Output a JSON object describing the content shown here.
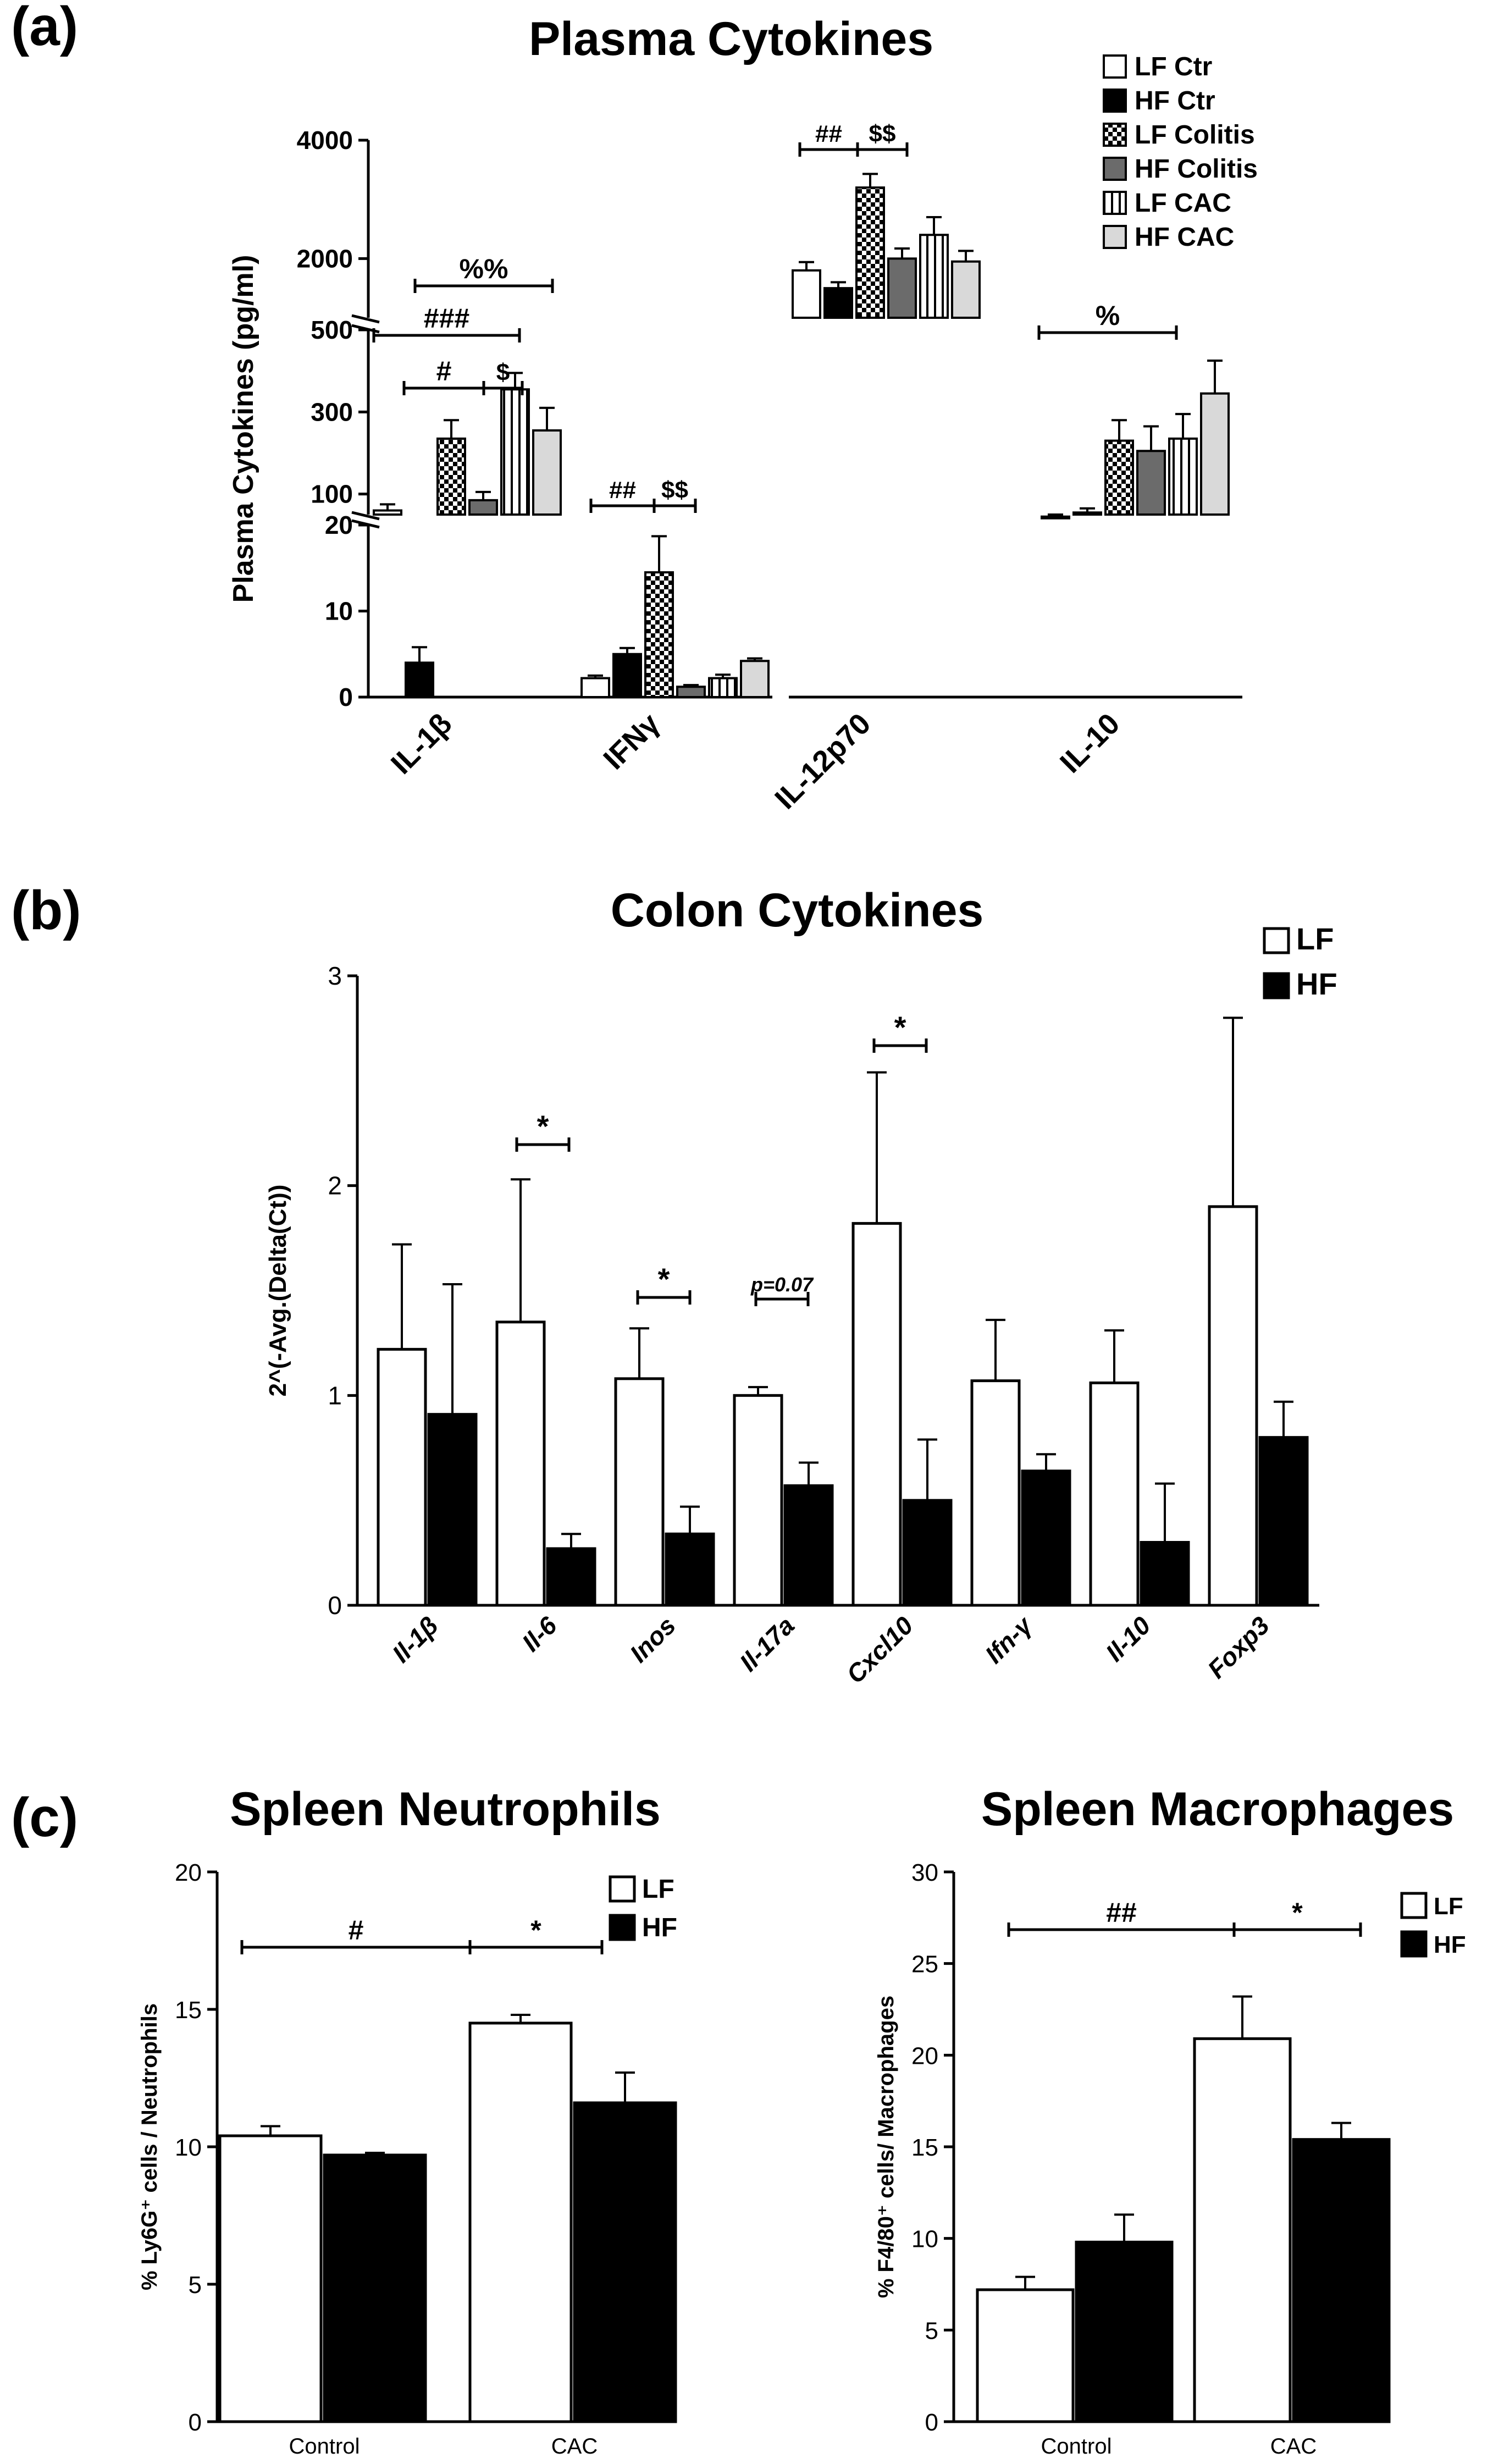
{
  "panels": {
    "a": {
      "tag": "(a)",
      "title": "Plasma Cytokines"
    },
    "b": {
      "tag": "(b)",
      "title": "Colon Cytokines"
    },
    "c": {
      "tag": "(c)",
      "title_left": "Spleen Neutrophils",
      "title_right": "Spleen Macrophages"
    }
  },
  "colors": {
    "LF": "#ffffff",
    "HF": "#000000",
    "HF Colitis": "#6b6b6b",
    "HF CAC": "#d9d9d9",
    "axis": "#000000"
  },
  "chart_data": [
    {
      "id": "a",
      "type": "bar",
      "title": "Plasma Cytokines",
      "ylabel": "Plasma Cytokines (pg/ml)",
      "yaxis_segments": [
        {
          "range": [
            0,
            20
          ],
          "ticks": [
            "0",
            "10",
            "20"
          ]
        },
        {
          "range": [
            50,
            500
          ],
          "ticks": [
            "100",
            "300",
            "500"
          ]
        },
        {
          "range": [
            1000,
            4000
          ],
          "ticks": [
            "2000",
            "4000"
          ]
        }
      ],
      "categories": [
        "IL-1β",
        "IFNγ",
        "IL-12p70",
        "IL-10"
      ],
      "series": [
        {
          "name": "LF Ctr",
          "pattern": "white",
          "values": [
            60,
            2.2,
            1800,
            45
          ],
          "errors": [
            15,
            0.3,
            140,
            5
          ]
        },
        {
          "name": "HF Ctr",
          "pattern": "black",
          "values": [
            4,
            5,
            1500,
            55
          ],
          "errors": [
            1.8,
            0.7,
            100,
            10
          ]
        },
        {
          "name": "LF Colitis",
          "pattern": "checker",
          "values": [
            235,
            14.5,
            3200,
            230
          ],
          "errors": [
            45,
            4.2,
            230,
            50
          ]
        },
        {
          "name": "HF Colitis",
          "pattern": "darkgray",
          "values": [
            85,
            1.2,
            2000,
            205
          ],
          "errors": [
            20,
            0.2,
            170,
            60
          ]
        },
        {
          "name": "LF CAC",
          "pattern": "vstripe",
          "values": [
            355,
            2.2,
            2400,
            235
          ],
          "errors": [
            40,
            0.4,
            300,
            60
          ]
        },
        {
          "name": "HF CAC",
          "pattern": "lightgray",
          "values": [
            255,
            4.2,
            1950,
            345
          ],
          "errors": [
            55,
            0.3,
            180,
            80
          ]
        }
      ],
      "annotations": [
        "%%",
        "###",
        "#",
        "$",
        "##",
        "$$",
        "##",
        "$$",
        "%"
      ]
    },
    {
      "id": "b",
      "type": "bar",
      "title": "Colon Cytokines",
      "ylabel": "2^(-Avg.(Delta(Ct))",
      "ylim": [
        0,
        3
      ],
      "yticks": [
        "0",
        "1",
        "2",
        "3"
      ],
      "categories": [
        "Il-1β",
        "Il-6",
        "Inos",
        "Il-17a",
        "Cxcl10",
        "Ifn-γ",
        "Il-10",
        "Foxp3"
      ],
      "series": [
        {
          "name": "LF",
          "values": [
            1.22,
            1.35,
            1.08,
            1.0,
            1.82,
            1.07,
            1.06,
            1.9
          ],
          "errors": [
            0.5,
            0.68,
            0.24,
            0.04,
            0.72,
            0.29,
            0.25,
            0.9
          ]
        },
        {
          "name": "HF",
          "values": [
            0.91,
            0.27,
            0.34,
            0.57,
            0.5,
            0.64,
            0.3,
            0.8
          ],
          "errors": [
            0.62,
            0.07,
            0.13,
            0.11,
            0.29,
            0.08,
            0.28,
            0.17
          ]
        }
      ],
      "annotations": [
        "*",
        "*",
        "p=0.07",
        "*"
      ]
    },
    {
      "id": "c1",
      "type": "bar",
      "title": "Spleen Neutrophils",
      "ylabel": "% Ly6G⁺ cells / Neutrophils",
      "ylim": [
        0,
        20
      ],
      "yticks": [
        "0",
        "5",
        "10",
        "15",
        "20"
      ],
      "categories": [
        "Control",
        "CAC"
      ],
      "series": [
        {
          "name": "LF",
          "values": [
            10.4,
            14.5
          ],
          "errors": [
            0.35,
            0.3
          ]
        },
        {
          "name": "HF",
          "values": [
            9.7,
            11.6
          ],
          "errors": [
            0.08,
            1.1
          ]
        }
      ],
      "annotations": [
        "#",
        "*"
      ]
    },
    {
      "id": "c2",
      "type": "bar",
      "title": "Spleen Macrophages",
      "ylabel": "% F4/80⁺ cells/ Macrophages",
      "ylim": [
        0,
        30
      ],
      "yticks": [
        "0",
        "5",
        "10",
        "15",
        "20",
        "25",
        "30"
      ],
      "categories": [
        "Control",
        "CAC"
      ],
      "series": [
        {
          "name": "LF",
          "values": [
            7.2,
            20.9
          ],
          "errors": [
            0.7,
            2.3
          ]
        },
        {
          "name": "HF",
          "values": [
            9.8,
            15.4
          ],
          "errors": [
            1.5,
            0.9
          ]
        }
      ],
      "annotations": [
        "##",
        "*"
      ]
    }
  ]
}
